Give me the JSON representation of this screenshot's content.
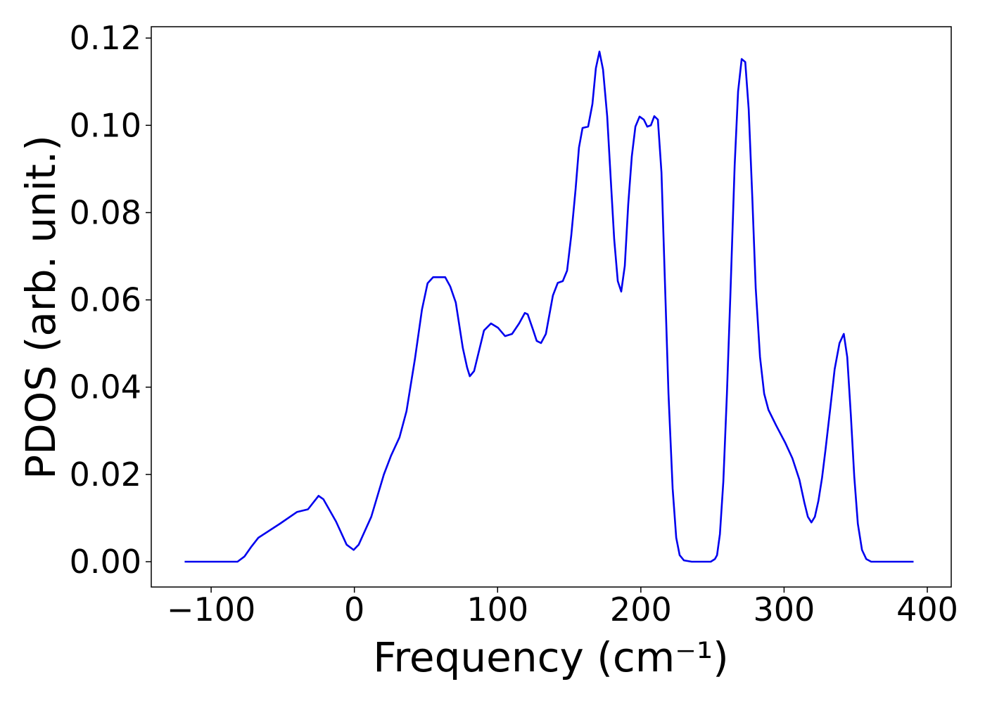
{
  "chart_data": {
    "type": "line",
    "x_label": "Frequency (cm⁻¹)",
    "y_label": "PDOS (arb. unit.)",
    "xlim": [
      -141.8,
      416.7
    ],
    "ylim": [
      -0.0058,
      0.1226
    ],
    "xticks": [
      {
        "value": -100,
        "label": "−100"
      },
      0,
      100,
      200,
      300,
      400
    ],
    "yticks": [
      {
        "value": 0,
        "label": "0.00"
      },
      {
        "value": 0.02,
        "label": "0.02"
      },
      {
        "value": 0.04,
        "label": "0.04"
      },
      {
        "value": 0.06,
        "label": "0.06"
      },
      {
        "value": 0.08,
        "label": "0.08"
      },
      {
        "value": 0.1,
        "label": "0.10"
      },
      0.12
    ],
    "x": [
      -118.5,
      -84,
      -81.6,
      -76.7,
      -71.8,
      -67,
      -52,
      -40,
      -32.4,
      -25,
      -21.6,
      -12.8,
      -5.4,
      -0.5,
      3,
      11.8,
      20.6,
      25.6,
      31.5,
      36.4,
      42.3,
      47.2,
      51.1,
      55,
      63.4,
      66.9,
      70.8,
      75.7,
      78.7,
      80.6,
      83.6,
      90.5,
      95.4,
      100.3,
      105.2,
      110.1,
      115,
      119,
      121,
      124.9,
      127.3,
      130.3,
      133.7,
      138.6,
      142,
      145.5,
      148.5,
      151.4,
      154.4,
      156.8,
      159.3,
      163.2,
      166.2,
      168.6,
      171.1,
      173.6,
      176.5,
      179,
      181.4,
      183.9,
      186.3,
      188.8,
      191.2,
      193.7,
      196.2,
      199.1,
      202.1,
      204.5,
      207,
      209.4,
      211.9,
      214.4,
      216.8,
      219.3,
      222.2,
      224.7,
      227.1,
      230.1,
      235.5,
      248.8,
      251.7,
      253.2,
      255.2,
      257.6,
      260.1,
      262.5,
      265.5,
      267.9,
      270.4,
      272.9,
      275.3,
      277.8,
      280.2,
      283.2,
      286.1,
      289.1,
      294.5,
      300.9,
      305.8,
      310.7,
      314.2,
      316.6,
      319.1,
      321.5,
      324,
      326.5,
      328.9,
      332.3,
      335.3,
      338.7,
      341.7,
      344.1,
      346.6,
      349,
      351.5,
      354.4,
      357.4,
      360.8,
      390.4
    ],
    "series": [
      {
        "color": "#0000ee",
        "values": [
          0,
          0,
          0,
          0.0012,
          0.0035,
          0.0055,
          0.0087,
          0.0114,
          0.012,
          0.0151,
          0.0143,
          0.0092,
          0.0039,
          0.0027,
          0.0039,
          0.0103,
          0.02,
          0.0243,
          0.0285,
          0.0345,
          0.0465,
          0.0578,
          0.0638,
          0.0652,
          0.0652,
          0.0631,
          0.0594,
          0.049,
          0.0445,
          0.0425,
          0.0437,
          0.053,
          0.0546,
          0.0536,
          0.0517,
          0.0522,
          0.0546,
          0.057,
          0.0567,
          0.053,
          0.0506,
          0.0501,
          0.0522,
          0.061,
          0.0639,
          0.0643,
          0.0667,
          0.0747,
          0.0852,
          0.0949,
          0.0994,
          0.0997,
          0.1049,
          0.1131,
          0.1169,
          0.1128,
          0.1021,
          0.0876,
          0.0739,
          0.0643,
          0.0619,
          0.0678,
          0.0819,
          0.0929,
          0.0997,
          0.102,
          0.1013,
          0.0997,
          0.1,
          0.1021,
          0.1013,
          0.0892,
          0.0643,
          0.0385,
          0.0168,
          0.0055,
          0.0015,
          0.0003,
          0,
          0,
          0.0006,
          0.0015,
          0.0063,
          0.0184,
          0.0385,
          0.061,
          0.0908,
          0.1078,
          0.1152,
          0.1145,
          0.1037,
          0.0836,
          0.0627,
          0.0469,
          0.0385,
          0.0348,
          0.0312,
          0.0272,
          0.0237,
          0.0188,
          0.0135,
          0.0103,
          0.009,
          0.0103,
          0.014,
          0.0192,
          0.0256,
          0.0353,
          0.0441,
          0.0501,
          0.0522,
          0.0469,
          0.0337,
          0.0195,
          0.0087,
          0.0027,
          0.0006,
          0,
          0
        ]
      }
    ]
  }
}
